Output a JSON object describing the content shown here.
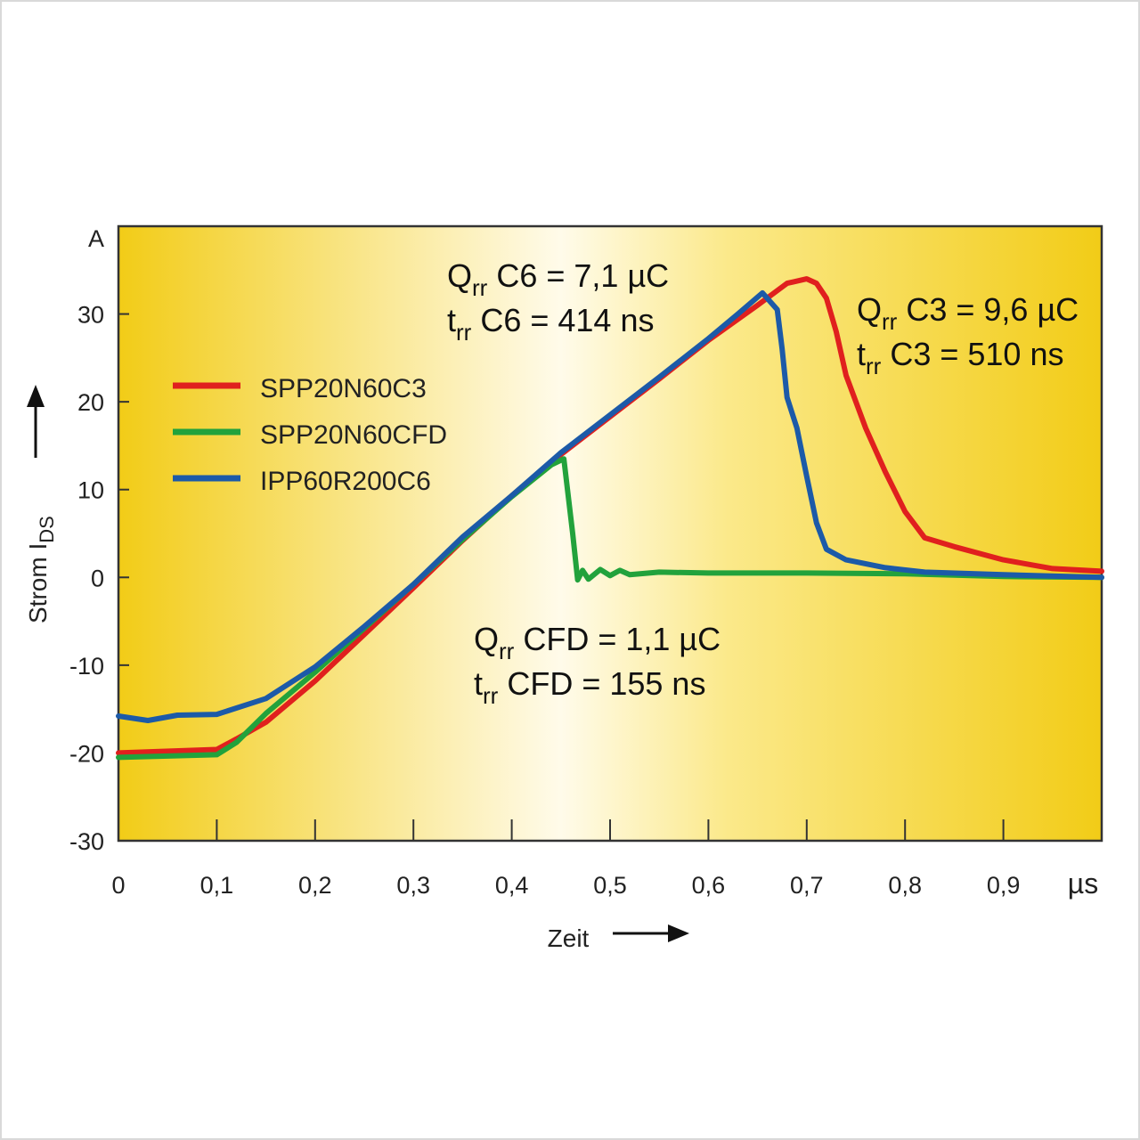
{
  "chart_data": {
    "type": "line",
    "xlabel": "Zeit",
    "xunit": "µs",
    "ylabel_main": "Strom I",
    "ylabel_sub": "DS",
    "yunit": "A",
    "xlim": [
      0,
      1.0
    ],
    "ylim": [
      -30,
      40
    ],
    "x_ticks": [
      {
        "v": 0,
        "label": "0"
      },
      {
        "v": 0.1,
        "label": "0,1"
      },
      {
        "v": 0.2,
        "label": "0,2"
      },
      {
        "v": 0.3,
        "label": "0,3"
      },
      {
        "v": 0.4,
        "label": "0,4"
      },
      {
        "v": 0.5,
        "label": "0,5"
      },
      {
        "v": 0.6,
        "label": "0,6"
      },
      {
        "v": 0.7,
        "label": "0,7"
      },
      {
        "v": 0.8,
        "label": "0,8"
      },
      {
        "v": 0.9,
        "label": "0,9"
      }
    ],
    "y_ticks": [
      {
        "v": 30,
        "label": "30"
      },
      {
        "v": 20,
        "label": "20"
      },
      {
        "v": 10,
        "label": "10"
      },
      {
        "v": 0,
        "label": "0"
      },
      {
        "v": -10,
        "label": "-10"
      },
      {
        "v": -20,
        "label": "-20"
      },
      {
        "v": -30,
        "label": "-30"
      }
    ],
    "series": [
      {
        "name": "SPP20N60C3",
        "color": "#e0201e",
        "points": [
          [
            0,
            -20
          ],
          [
            0.1,
            -19.6
          ],
          [
            0.12,
            -18.4
          ],
          [
            0.15,
            -16.5
          ],
          [
            0.2,
            -11.8
          ],
          [
            0.25,
            -6.5
          ],
          [
            0.3,
            -1.2
          ],
          [
            0.35,
            4.2
          ],
          [
            0.4,
            9.3
          ],
          [
            0.45,
            14.0
          ],
          [
            0.5,
            18.3
          ],
          [
            0.55,
            22.6
          ],
          [
            0.6,
            27.0
          ],
          [
            0.65,
            31.0
          ],
          [
            0.68,
            33.5
          ],
          [
            0.7,
            34.0
          ],
          [
            0.71,
            33.5
          ],
          [
            0.72,
            31.8
          ],
          [
            0.73,
            28.0
          ],
          [
            0.74,
            23.0
          ],
          [
            0.76,
            17.0
          ],
          [
            0.78,
            12.0
          ],
          [
            0.8,
            7.5
          ],
          [
            0.82,
            4.5
          ],
          [
            0.85,
            3.5
          ],
          [
            0.9,
            2.0
          ],
          [
            0.95,
            1.0
          ],
          [
            1.0,
            0.7
          ]
        ]
      },
      {
        "name": "SPP20N60CFD",
        "color": "#22a23c",
        "points": [
          [
            0,
            -20.5
          ],
          [
            0.1,
            -20.2
          ],
          [
            0.12,
            -18.8
          ],
          [
            0.15,
            -15.5
          ],
          [
            0.2,
            -10.8
          ],
          [
            0.25,
            -5.8
          ],
          [
            0.3,
            -0.8
          ],
          [
            0.35,
            4.3
          ],
          [
            0.4,
            9.2
          ],
          [
            0.44,
            12.8
          ],
          [
            0.453,
            13.5
          ],
          [
            0.462,
            5
          ],
          [
            0.467,
            -0.3
          ],
          [
            0.472,
            0.8
          ],
          [
            0.478,
            -0.2
          ],
          [
            0.49,
            0.9
          ],
          [
            0.5,
            0.2
          ],
          [
            0.51,
            0.8
          ],
          [
            0.52,
            0.3
          ],
          [
            0.55,
            0.6
          ],
          [
            0.6,
            0.5
          ],
          [
            0.7,
            0.5
          ],
          [
            0.8,
            0.4
          ],
          [
            0.9,
            0.1
          ],
          [
            1.0,
            0
          ]
        ]
      },
      {
        "name": "IPP60R200C6",
        "color": "#1c5aa8",
        "points": [
          [
            0,
            -15.8
          ],
          [
            0.03,
            -16.3
          ],
          [
            0.06,
            -15.7
          ],
          [
            0.1,
            -15.6
          ],
          [
            0.15,
            -13.8
          ],
          [
            0.2,
            -10.2
          ],
          [
            0.25,
            -5.6
          ],
          [
            0.3,
            -0.8
          ],
          [
            0.35,
            4.6
          ],
          [
            0.4,
            9.3
          ],
          [
            0.45,
            14.2
          ],
          [
            0.5,
            18.5
          ],
          [
            0.55,
            22.8
          ],
          [
            0.6,
            27.2
          ],
          [
            0.63,
            30.0
          ],
          [
            0.655,
            32.4
          ],
          [
            0.67,
            30.5
          ],
          [
            0.675,
            26
          ],
          [
            0.68,
            20.5
          ],
          [
            0.69,
            17
          ],
          [
            0.7,
            11.5
          ],
          [
            0.71,
            6.2
          ],
          [
            0.72,
            3.2
          ],
          [
            0.74,
            2.0
          ],
          [
            0.78,
            1.1
          ],
          [
            0.82,
            0.6
          ],
          [
            0.9,
            0.3
          ],
          [
            1.0,
            0
          ]
        ]
      }
    ],
    "annotations": [
      {
        "id": "c6",
        "line1_main": "Q",
        "line1_sub": "rr",
        "line1_rest": " C6 = 7,1 µC",
        "line2_main": "t",
        "line2_sub": "rr",
        "line2_rest": " C6 = 414 ns"
      },
      {
        "id": "c3",
        "line1_main": "Q",
        "line1_sub": "rr",
        "line1_rest": " C3 = 9,6 µC",
        "line2_main": "t",
        "line2_sub": "rr",
        "line2_rest": " C3 = 510 ns"
      },
      {
        "id": "cfd",
        "line1_main": "Q",
        "line1_sub": "rr",
        "line1_rest": " CFD = 1,1 µC",
        "line2_main": "t",
        "line2_sub": "rr",
        "line2_rest": " CFD = 155 ns"
      }
    ],
    "legend": [
      {
        "label": "SPP20N60C3",
        "color": "#e0201e"
      },
      {
        "label": "SPP20N60CFD",
        "color": "#22a23c"
      },
      {
        "label": "IPP60R200C6",
        "color": "#1c5aa8"
      }
    ],
    "legend_position": "left"
  }
}
